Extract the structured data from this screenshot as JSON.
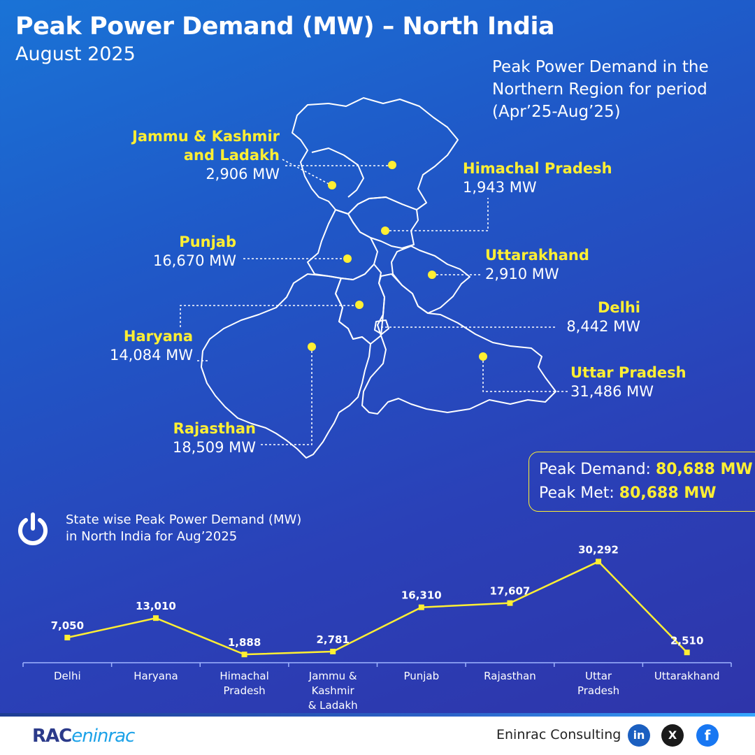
{
  "header": {
    "title": "Peak Power Demand (MW) – North India",
    "subtitle": "August 2025",
    "period_lines": [
      "Peak Power Demand in the",
      "Northern Region for period",
      "(Apr’25-Aug’25)"
    ]
  },
  "map_labels": [
    {
      "name_lines": [
        "Jammu & Kashmir",
        "and Ladakh"
      ],
      "value": "2,906 MW"
    },
    {
      "name_lines": [
        "Himachal Pradesh"
      ],
      "value": "1,943 MW"
    },
    {
      "name_lines": [
        "Punjab"
      ],
      "value": "16,670 MW"
    },
    {
      "name_lines": [
        "Uttarakhand"
      ],
      "value": "2,910 MW"
    },
    {
      "name_lines": [
        "Haryana"
      ],
      "value": "14,084 MW"
    },
    {
      "name_lines": [
        "Delhi"
      ],
      "value": "8,442 MW"
    },
    {
      "name_lines": [
        "Uttar Pradesh"
      ],
      "value": "31,486 MW"
    },
    {
      "name_lines": [
        "Rajasthan"
      ],
      "value": "18,509 MW"
    }
  ],
  "peak": {
    "demand_label": "Peak Demand: ",
    "demand_value": "80,688 MW",
    "met_label": "Peak Met: ",
    "met_value": "80,688 MW"
  },
  "chart_section": {
    "title_lines": [
      "State wise Peak Power Demand (MW)",
      "in North India for Aug’2025"
    ]
  },
  "chart_data": {
    "type": "line",
    "categories": [
      "Delhi",
      "Haryana",
      "Himachal Pradesh",
      "Jammu & Kashmir & Ladakh",
      "Punjab",
      "Rajasthan",
      "Uttar Pradesh",
      "Uttarakhand"
    ],
    "category_lines": [
      [
        "Delhi"
      ],
      [
        "Haryana"
      ],
      [
        "Himachal",
        "Pradesh"
      ],
      [
        "Jammu &",
        "Kashmir",
        "& Ladakh"
      ],
      [
        "Punjab"
      ],
      [
        "Rajasthan"
      ],
      [
        "Uttar",
        "Pradesh"
      ],
      [
        "Uttarakhand"
      ]
    ],
    "values": [
      7050,
      13010,
      1888,
      2781,
      16310,
      17607,
      30292,
      2510
    ],
    "value_labels": [
      "7,050",
      "13,010",
      "1,888",
      "2,781",
      "16,310",
      "17,607",
      "30,292",
      "2,510"
    ],
    "title": "State wise Peak Power Demand (MW) in North India for Aug’2025",
    "xlabel": "",
    "ylabel": "",
    "ylim": [
      0,
      31000
    ],
    "grid": false,
    "line_color": "#ffef33"
  },
  "footer": {
    "logo_main": "RAC",
    "logo_brand": "eninrac",
    "company": "Eninrac Consulting",
    "social": [
      {
        "icon": "linkedin-icon",
        "glyph": "in"
      },
      {
        "icon": "x-icon",
        "glyph": "X"
      },
      {
        "icon": "facebook-icon",
        "glyph": "f"
      }
    ]
  },
  "colors": {
    "accent": "#ffef33",
    "label_yellow": "#ffef33",
    "text": "#ffffff"
  }
}
